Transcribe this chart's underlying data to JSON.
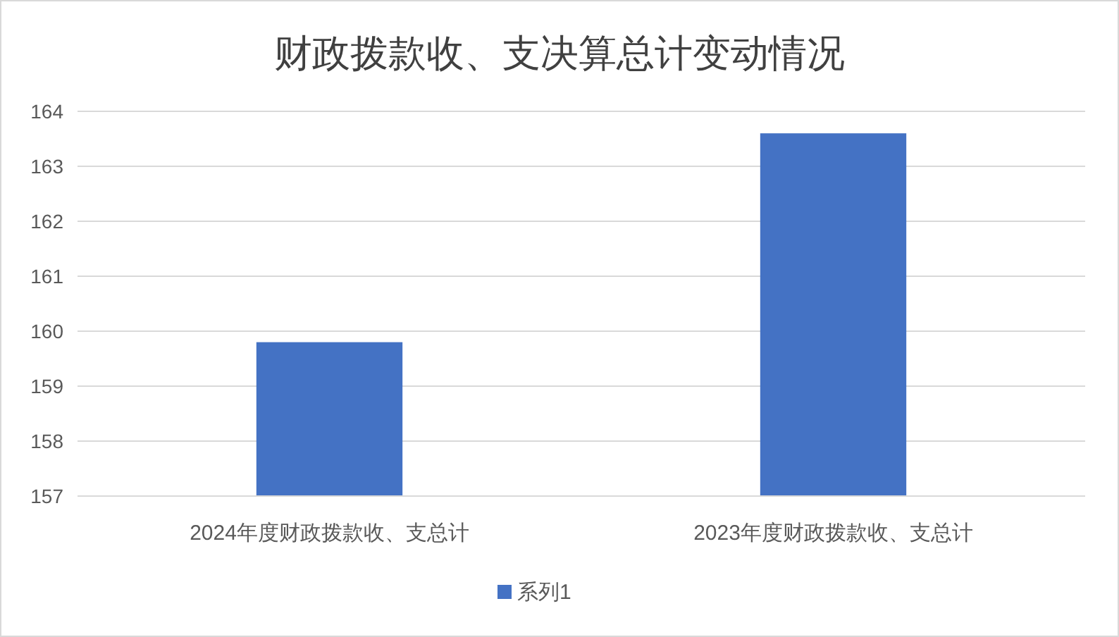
{
  "chart_data": {
    "type": "bar",
    "title": "财政拨款收、支决算总计变动情况",
    "categories": [
      "2024年度财政拨款收、支总计",
      "2023年度财政拨款收、支总计"
    ],
    "series": [
      {
        "name": "系列1",
        "color": "#4472c4",
        "values": [
          159.8,
          163.6
        ]
      }
    ],
    "ylim": [
      157,
      164
    ],
    "yticks": [
      157,
      158,
      159,
      160,
      161,
      162,
      163,
      164
    ],
    "grid": "y",
    "legend": "bottom"
  }
}
